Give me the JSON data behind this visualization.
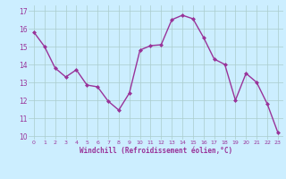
{
  "x": [
    0,
    1,
    2,
    3,
    4,
    5,
    6,
    7,
    8,
    9,
    10,
    11,
    12,
    13,
    14,
    15,
    16,
    17,
    18,
    19,
    20,
    21,
    22,
    23
  ],
  "y": [
    15.8,
    15.0,
    13.8,
    13.3,
    13.7,
    12.85,
    12.75,
    11.95,
    11.45,
    12.4,
    14.8,
    15.05,
    15.1,
    16.5,
    16.75,
    16.55,
    15.5,
    14.3,
    14.0,
    12.0,
    13.5,
    13.0,
    11.8,
    10.2
  ],
  "line_color": "#993399",
  "marker": "D",
  "marker_size": 2,
  "bg_color": "#cceeff",
  "grid_color": "#aacccc",
  "xlabel": "Windchill (Refroidissement éolien,°C)",
  "xlabel_color": "#993399",
  "tick_color": "#993399",
  "ylim": [
    9.8,
    17.3
  ],
  "yticks": [
    10,
    11,
    12,
    13,
    14,
    15,
    16,
    17
  ],
  "xticks": [
    0,
    1,
    2,
    3,
    4,
    5,
    6,
    7,
    8,
    9,
    10,
    11,
    12,
    13,
    14,
    15,
    16,
    17,
    18,
    19,
    20,
    21,
    22,
    23
  ]
}
